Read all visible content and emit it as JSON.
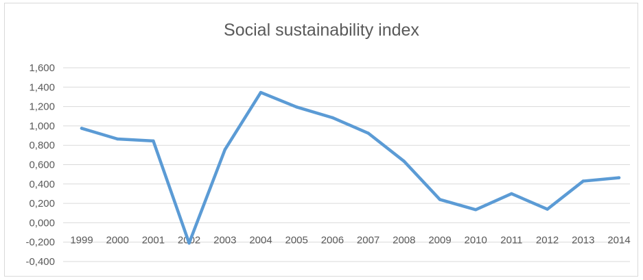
{
  "chart_data": {
    "type": "line",
    "title": "Social sustainability index",
    "xlabel": "",
    "ylabel": "",
    "categories": [
      "1999",
      "2000",
      "2001",
      "2002",
      "2003",
      "2004",
      "2005",
      "2006",
      "2007",
      "2008",
      "2009",
      "2010",
      "2011",
      "2012",
      "2013",
      "2014"
    ],
    "series": [
      {
        "values": [
          0.975,
          0.865,
          0.845,
          -0.21,
          0.755,
          1.345,
          1.195,
          1.085,
          0.925,
          0.635,
          0.24,
          0.135,
          0.3,
          0.14,
          0.43,
          0.465
        ]
      }
    ],
    "ylim": [
      -0.4,
      1.6
    ],
    "yticks": [
      1.6,
      1.4,
      1.2,
      1.0,
      0.8,
      0.6,
      0.4,
      0.2,
      0.0,
      -0.2,
      -0.4
    ],
    "ytick_labels": [
      "1,600",
      "1,400",
      "1,200",
      "1,000",
      "0,800",
      "0,600",
      "0,400",
      "0,200",
      "0,000",
      "-0,200",
      "-0,400"
    ],
    "grid": true,
    "line_color": "#5b9bd5",
    "grid_color": "#d9d9d9"
  }
}
